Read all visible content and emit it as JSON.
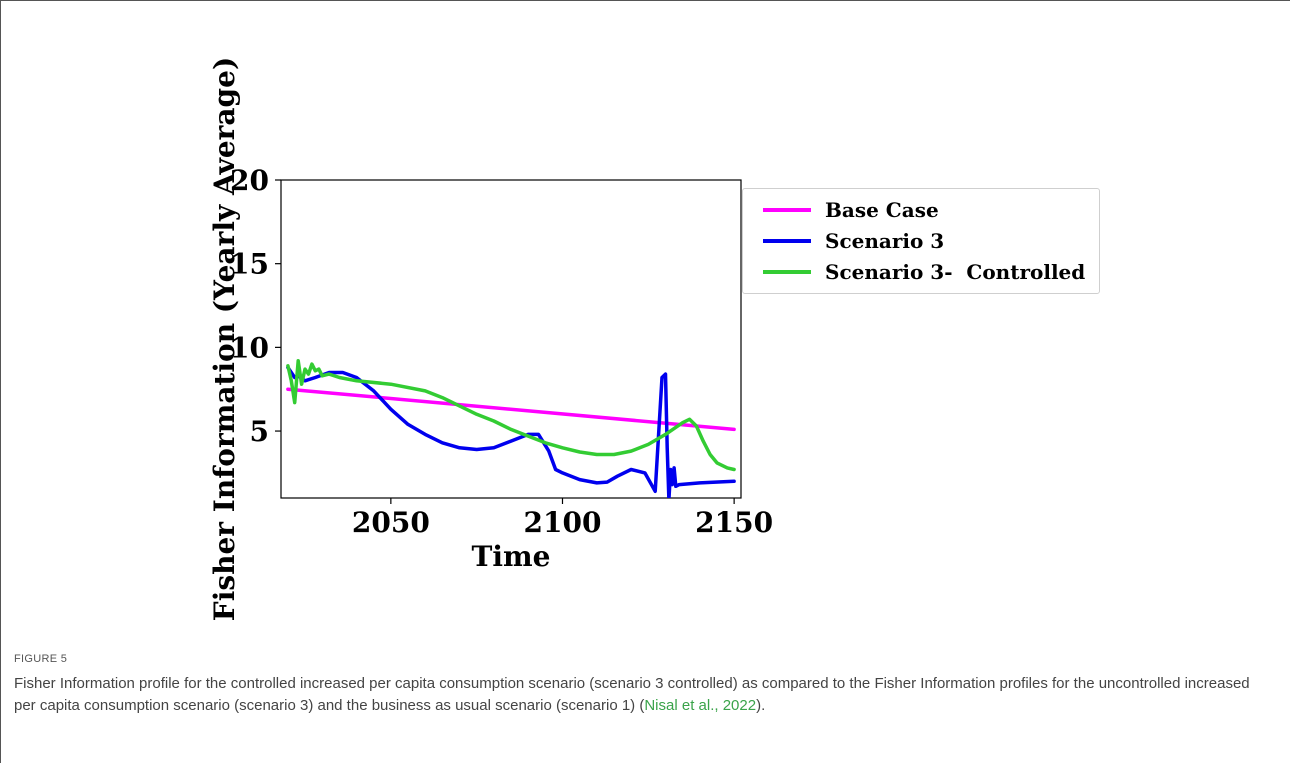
{
  "chart_data": {
    "type": "line",
    "xlabel": "Time",
    "ylabel": "Fisher Information (Yearly Average)",
    "xlim": [
      2018,
      2152
    ],
    "ylim": [
      1,
      20
    ],
    "xticks": [
      2050,
      2100,
      2150
    ],
    "yticks": [
      5,
      10,
      15,
      20
    ],
    "grid": false,
    "legend_placement": "outside-right",
    "series": [
      {
        "name": "Base Case",
        "color": "#ff00ff",
        "x": [
          2020,
          2150
        ],
        "y": [
          7.5,
          5.1
        ]
      },
      {
        "name": "Scenario 3",
        "color": "#0000ee",
        "x": [
          2020,
          2022,
          2023,
          2025,
          2028,
          2032,
          2036,
          2040,
          2045,
          2050,
          2055,
          2060,
          2065,
          2070,
          2075,
          2080,
          2085,
          2090,
          2093,
          2096,
          2098,
          2100,
          2105,
          2110,
          2113,
          2116,
          2120,
          2124,
          2127,
          2129,
          2130,
          2130.5,
          2131,
          2131.5,
          2132,
          2132.5,
          2133,
          2134,
          2140,
          2150
        ],
        "y": [
          8.8,
          8.2,
          8.3,
          8.0,
          8.2,
          8.5,
          8.5,
          8.2,
          7.4,
          6.3,
          5.4,
          4.8,
          4.3,
          4.0,
          3.9,
          4.0,
          4.4,
          4.8,
          4.8,
          3.8,
          2.7,
          2.5,
          2.1,
          1.9,
          1.95,
          2.3,
          2.7,
          2.5,
          1.4,
          8.2,
          8.4,
          4.0,
          0.9,
          2.7,
          1.8,
          2.8,
          1.7,
          1.8,
          1.9,
          2.0
        ]
      },
      {
        "name": "Scenario 3-  Controlled",
        "color": "#33cc33",
        "x": [
          2020,
          2021,
          2022,
          2023,
          2024,
          2025,
          2026,
          2027,
          2028,
          2029,
          2030,
          2032,
          2035,
          2040,
          2050,
          2060,
          2065,
          2070,
          2075,
          2080,
          2085,
          2090,
          2095,
          2100,
          2105,
          2110,
          2115,
          2120,
          2125,
          2130,
          2135,
          2137,
          2139,
          2141,
          2143,
          2145,
          2148,
          2150
        ],
        "y": [
          8.9,
          8.0,
          6.7,
          9.2,
          7.8,
          8.7,
          8.4,
          9.0,
          8.6,
          8.7,
          8.3,
          8.4,
          8.2,
          8.0,
          7.8,
          7.4,
          7.0,
          6.5,
          6.0,
          5.6,
          5.1,
          4.7,
          4.3,
          4.0,
          3.75,
          3.6,
          3.6,
          3.8,
          4.2,
          4.8,
          5.5,
          5.7,
          5.3,
          4.4,
          3.6,
          3.1,
          2.8,
          2.7
        ]
      }
    ]
  },
  "caption": {
    "label": "FIGURE 5",
    "text": "Fisher Information profile for the controlled increased per capita consumption scenario (scenario 3 controlled) as compared to the Fisher Information profiles for the uncontrolled increased per capita consumption scenario (scenario 3) and the business as usual scenario (scenario 1) (",
    "citation": "Nisal et al., 2022",
    "end": ")."
  }
}
